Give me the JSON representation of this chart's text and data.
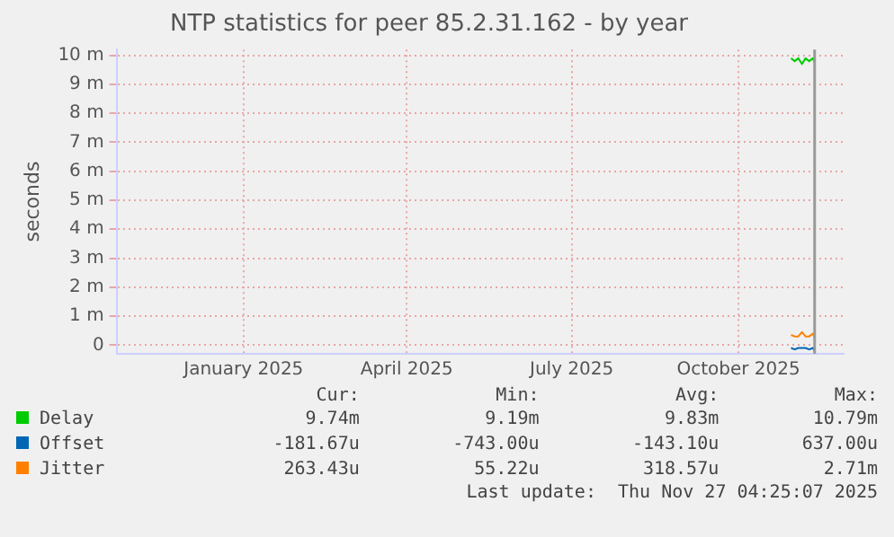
{
  "chart_data": {
    "type": "line",
    "title": "NTP statistics for peer 85.2.31.162 - by year",
    "ylabel": "seconds",
    "x": [
      "2025-10-30",
      "2025-11-01",
      "2025-11-03",
      "2025-11-05",
      "2025-11-07",
      "2025-11-09",
      "2025-11-11",
      "2025-11-12"
    ],
    "series": [
      {
        "name": "Delay",
        "color": "#00cc00",
        "values": [
          9.9,
          9.8,
          9.9,
          9.7,
          9.9,
          9.8,
          9.9,
          9.75
        ]
      },
      {
        "name": "Offset",
        "color": "#0066b3",
        "values": [
          -0.1,
          -0.15,
          -0.1,
          -0.1,
          -0.1,
          -0.15,
          -0.1,
          -0.2
        ]
      },
      {
        "name": "Jitter",
        "color": "#ff8000",
        "values": [
          0.35,
          0.3,
          0.3,
          0.45,
          0.3,
          0.3,
          0.4,
          0.25
        ]
      }
    ],
    "xlim": [
      "2024-10-23",
      "2025-11-28"
    ],
    "xticks": [
      {
        "value": "2025-01-01",
        "label": "January 2025"
      },
      {
        "value": "2025-04-01",
        "label": "April 2025"
      },
      {
        "value": "2025-07-01",
        "label": "July 2025"
      },
      {
        "value": "2025-10-01",
        "label": "October 2025"
      }
    ],
    "ylim": [
      -0.3,
      10.2
    ],
    "yticks": [
      {
        "value": 0,
        "label": "0"
      },
      {
        "value": 1,
        "label": "1 m"
      },
      {
        "value": 2,
        "label": "2 m"
      },
      {
        "value": 3,
        "label": "3 m"
      },
      {
        "value": 4,
        "label": "4 m"
      },
      {
        "value": 5,
        "label": "5 m"
      },
      {
        "value": 6,
        "label": "6 m"
      },
      {
        "value": 7,
        "label": "7 m"
      },
      {
        "value": 8,
        "label": "8 m"
      },
      {
        "value": 9,
        "label": "9 m"
      },
      {
        "value": 10,
        "label": "10 m"
      }
    ],
    "ref_lines": [
      {
        "axis": "x",
        "value": "2025-11-12",
        "color": "#999999"
      }
    ],
    "grid": true,
    "legend": "bottom left",
    "marker": "none",
    "line_style": "solid",
    "annotations": [
      "Cur:",
      "Min:",
      "Avg:",
      "Max:",
      "9.74m",
      "9.19m",
      "9.83m",
      "10.79m",
      "-181.67u",
      "-743.00u",
      "-143.10u",
      "637.00u",
      "263.43u",
      "55.22u",
      "318.57u",
      "2.71m",
      "Last update:  Thu Nov 27 04:25:07 2025"
    ]
  }
}
